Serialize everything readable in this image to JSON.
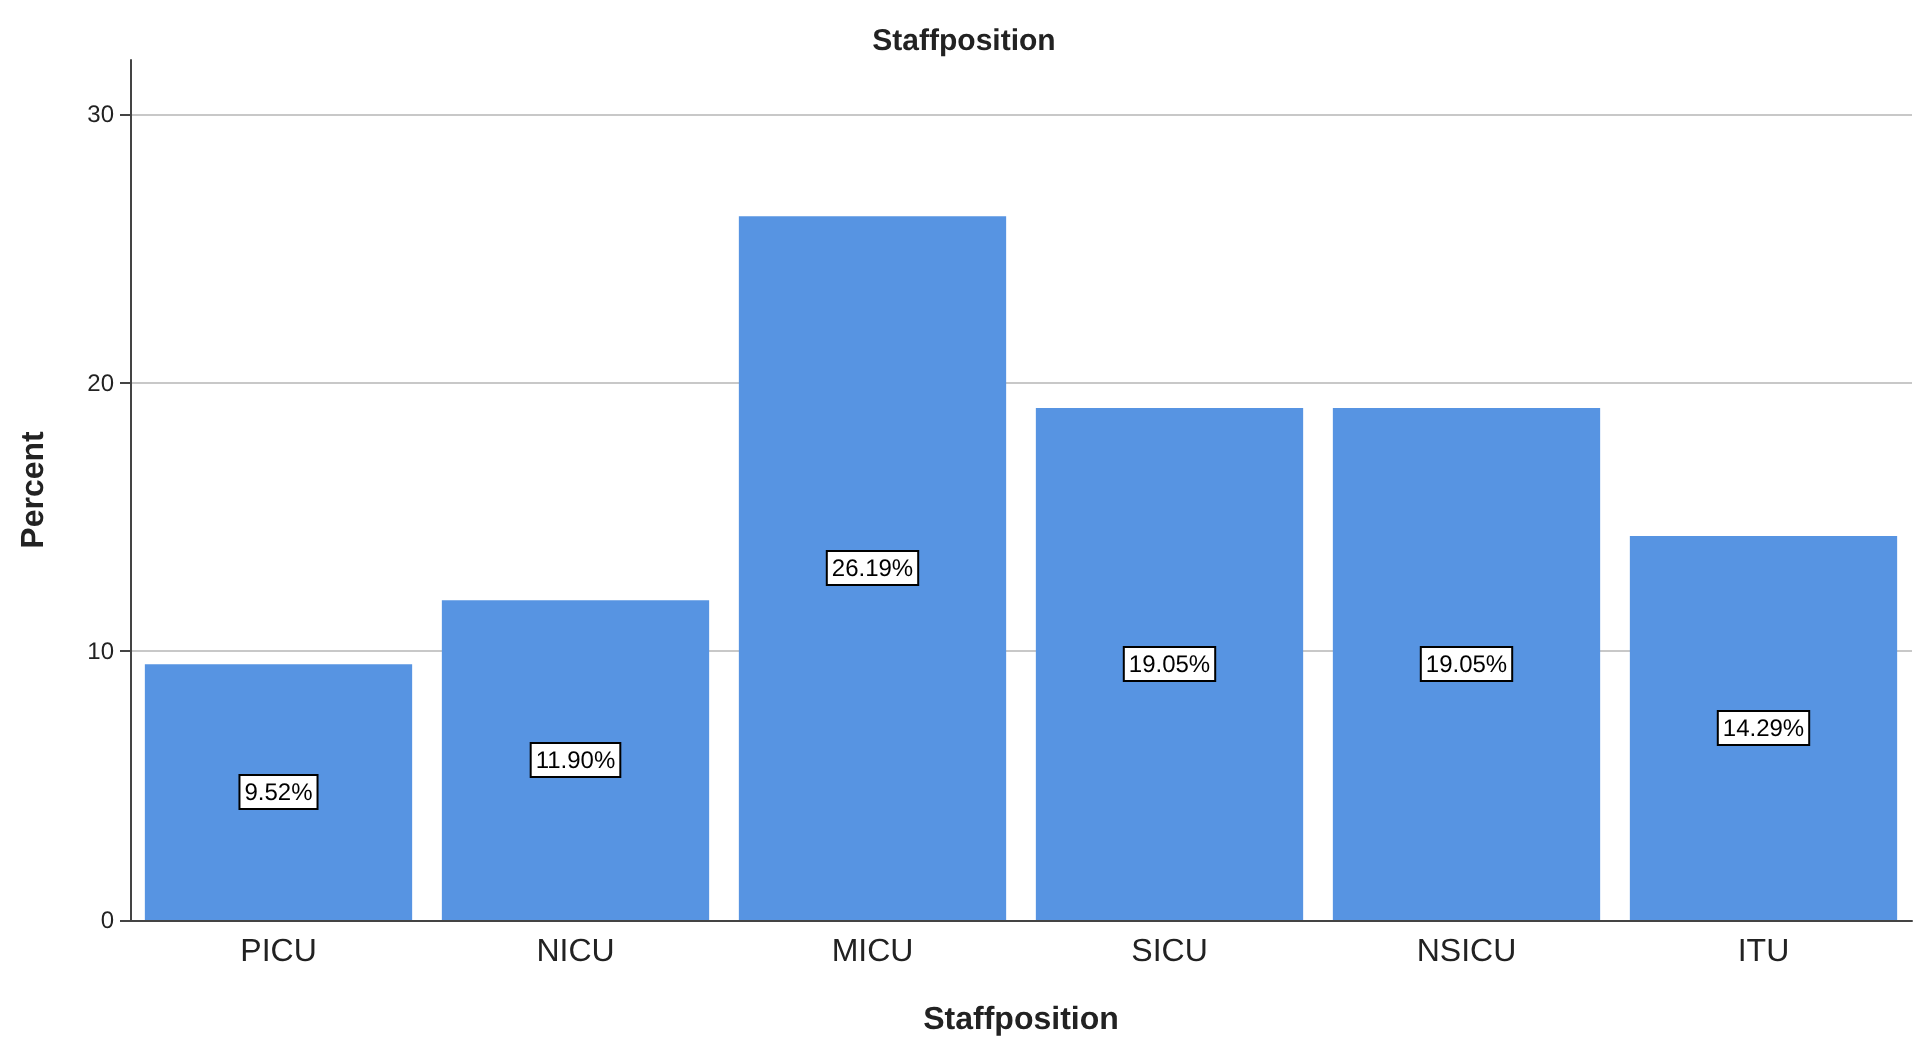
{
  "chart_data": {
    "type": "bar",
    "title": "Staffposition",
    "xlabel": "Staffposition",
    "ylabel": "Percent",
    "categories": [
      "PICU",
      "NICU",
      "MICU",
      "SICU",
      "NSICU",
      "ITU"
    ],
    "values": [
      9.52,
      11.9,
      26.19,
      19.05,
      19.05,
      14.29
    ],
    "value_labels": [
      "9.52%",
      "11.90%",
      "26.19%",
      "19.05%",
      "19.05%",
      "14.29%"
    ],
    "color": "#5794e2",
    "ylim": [
      0,
      32
    ],
    "yticks": [
      0,
      10,
      20,
      30
    ],
    "grid": "y"
  }
}
